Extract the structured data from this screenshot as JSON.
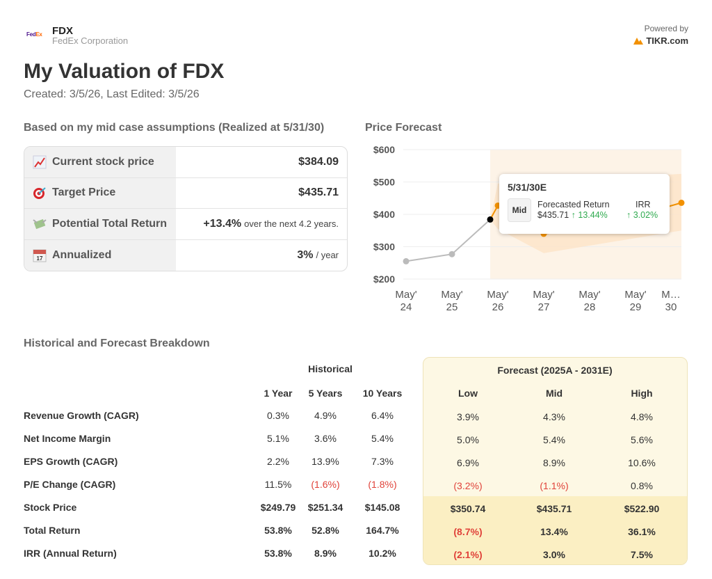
{
  "header": {
    "logo": "FedEx",
    "ticker": "FDX",
    "company": "FedEx Corporation",
    "powered_by": "Powered by",
    "brand": "TIKR.com"
  },
  "title": "My Valuation of FDX",
  "meta": "Created: 3/5/26, Last Edited: 3/5/26",
  "summary": {
    "heading": "Based on my mid case assumptions (Realized at 5/31/30)",
    "rows": [
      {
        "icon": "chart-increasing-icon",
        "label": "Current stock price",
        "value": "$384.09",
        "suffix": ""
      },
      {
        "icon": "target-icon",
        "label": "Target Price",
        "value": "$435.71",
        "suffix": ""
      },
      {
        "icon": "money-wings-icon",
        "label": "Potential Total Return",
        "value": "+13.4%",
        "suffix": "over the next 4.2 years."
      },
      {
        "icon": "calendar-icon",
        "label": "Annualized",
        "value": "3%",
        "suffix": "/ year"
      }
    ]
  },
  "chart_data": {
    "type": "line",
    "title": "Price Forecast",
    "y_ticks": [
      "$600",
      "$500",
      "$400",
      "$300",
      "$200"
    ],
    "ylim": [
      200,
      600
    ],
    "x_ticks": [
      [
        "May'",
        "24"
      ],
      [
        "May'",
        "25"
      ],
      [
        "May'",
        "26"
      ],
      [
        "May'",
        "27"
      ],
      [
        "May'",
        "28"
      ],
      [
        "May'",
        "29"
      ],
      [
        "M…",
        "30"
      ]
    ],
    "historical": [
      {
        "x": "May 24",
        "y": 255
      },
      {
        "x": "May 25",
        "y": 277
      },
      {
        "x": "Mar 26",
        "y": 384.09
      }
    ],
    "mid": [
      {
        "x": "Mar 26",
        "y": 384.09
      },
      {
        "x": "May 26",
        "y": 427
      },
      {
        "x": "May 27",
        "y": 340
      },
      {
        "x": "May 28",
        "y": 355
      },
      {
        "x": "May 29",
        "y": 395
      },
      {
        "x": "May 30",
        "y": 435.71
      }
    ],
    "band_high": [
      {
        "x": "Mar 26",
        "y": 384
      },
      {
        "x": "May 26",
        "y": 495
      },
      {
        "x": "May 30",
        "y": 525
      }
    ],
    "band_low": [
      {
        "x": "Mar 26",
        "y": 384
      },
      {
        "x": "May 26",
        "y": 355
      },
      {
        "x": "May 27",
        "y": 280
      },
      {
        "x": "May 30",
        "y": 350
      }
    ],
    "colors": {
      "historical": "#bbbbbb",
      "forecast": "#f29100",
      "band": "#fde3c8",
      "current": "#000000"
    },
    "tooltip": {
      "date": "5/31/30E",
      "case": "Mid",
      "ret_label": "Forecasted Return",
      "price": "$435.71",
      "ret": "↑ 13.44%",
      "irr_label": "IRR",
      "irr": "↑ 3.02%"
    }
  },
  "breakdown": {
    "heading": "Historical and Forecast Breakdown",
    "historical_label": "Historical",
    "forecast_label": "Forecast (2025A - 2031E)",
    "columns": [
      "1 Year",
      "5 Years",
      "10 Years",
      "Low",
      "Mid",
      "High"
    ],
    "rows": [
      {
        "label": "Revenue Growth (CAGR)",
        "values": [
          "0.3%",
          "4.9%",
          "6.4%",
          "3.9%",
          "4.3%",
          "4.8%"
        ]
      },
      {
        "label": "Net Income Margin",
        "values": [
          "5.1%",
          "3.6%",
          "5.4%",
          "5.0%",
          "5.4%",
          "5.6%"
        ]
      },
      {
        "label": "EPS Growth (CAGR)",
        "values": [
          "2.2%",
          "13.9%",
          "7.3%",
          "6.9%",
          "8.9%",
          "10.6%"
        ]
      },
      {
        "label": "P/E Change (CAGR)",
        "values": [
          "11.5%",
          "(1.6%)",
          "(1.8%)",
          "(3.2%)",
          "(1.1%)",
          "0.8%"
        ]
      },
      {
        "label": "Stock Price",
        "values": [
          "$249.79",
          "$251.34",
          "$145.08",
          "$350.74",
          "$435.71",
          "$522.90"
        ]
      },
      {
        "label": "Total Return",
        "values": [
          "53.8%",
          "52.8%",
          "164.7%",
          "(8.7%)",
          "13.4%",
          "36.1%"
        ]
      },
      {
        "label": "IRR (Annual Return)",
        "values": [
          "53.8%",
          "8.9%",
          "10.2%",
          "(2.1%)",
          "3.0%",
          "7.5%"
        ]
      }
    ]
  }
}
